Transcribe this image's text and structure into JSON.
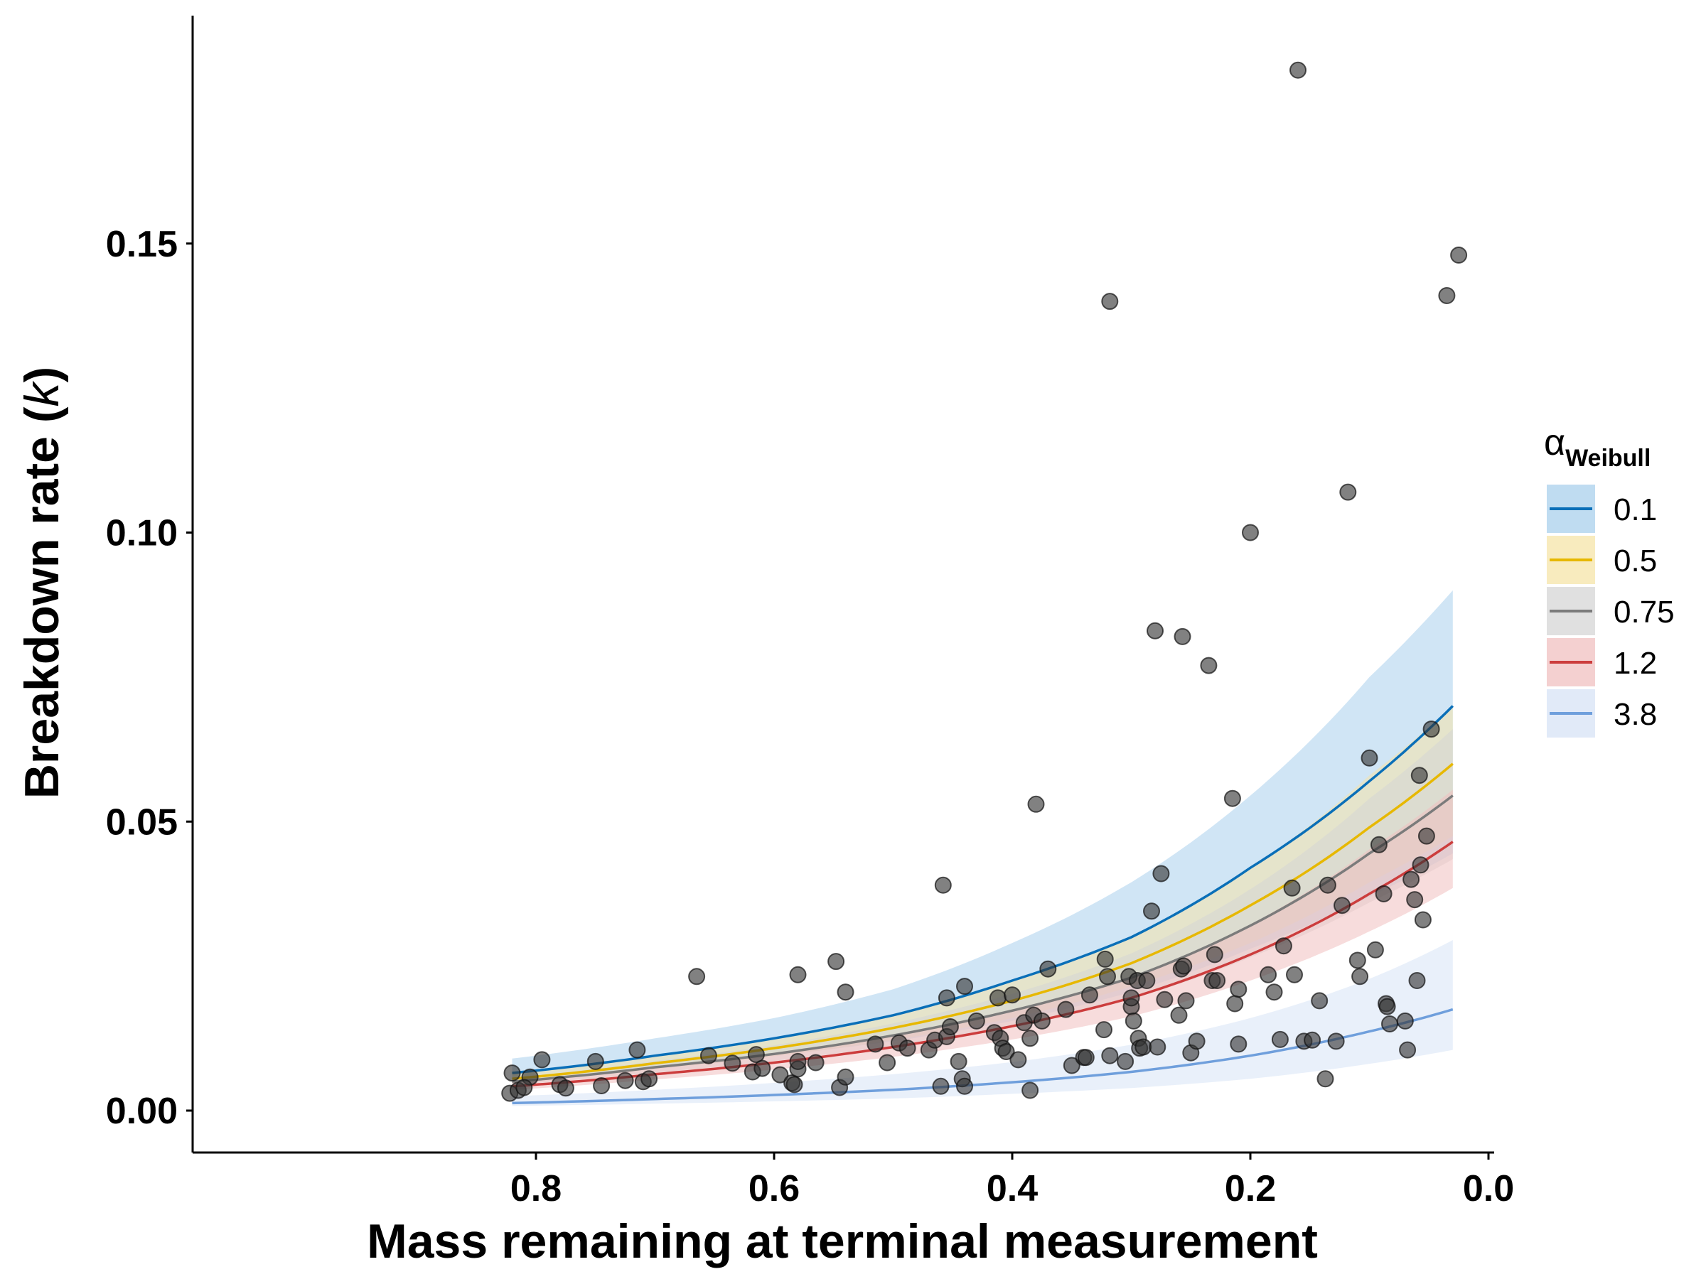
{
  "chart_data": {
    "type": "scatter",
    "xlabel": "Mass remaining at terminal measurement",
    "ylabel_main": "Breakdown rate (",
    "ylabel_italic": "k",
    "ylabel_end": ")",
    "xlim": [
      0.0,
      0.82
    ],
    "x_reversed": true,
    "ylim": [
      0.0,
      0.18
    ],
    "x_ticks": [
      0.8,
      0.6,
      0.4,
      0.2,
      0.0
    ],
    "x_tick_labels": [
      "0.8",
      "0.6",
      "0.4",
      "0.2",
      "0.0"
    ],
    "y_ticks": [
      0.0,
      0.05,
      0.1,
      0.15
    ],
    "y_tick_labels": [
      "0.00",
      "0.05",
      "0.10",
      "0.15"
    ],
    "grid": false,
    "legend": {
      "position": "right",
      "title_symbol": "α",
      "title_subscript": "Weibull",
      "entries": [
        "0.1",
        "0.5",
        "0.75",
        "1.2",
        "3.8"
      ]
    },
    "curves": [
      {
        "name": "0.1",
        "color": "#0a6fb8",
        "band_color": "#a9d0ec",
        "x": [
          0.82,
          0.7,
          0.6,
          0.5,
          0.4,
          0.3,
          0.2,
          0.1,
          0.03
        ],
        "y": [
          0.0065,
          0.0095,
          0.0125,
          0.0165,
          0.0225,
          0.03,
          0.042,
          0.057,
          0.07
        ],
        "lower": [
          0.0055,
          0.0075,
          0.0095,
          0.012,
          0.0155,
          0.0205,
          0.028,
          0.037,
          0.0445
        ],
        "upper": [
          0.009,
          0.0125,
          0.016,
          0.021,
          0.029,
          0.0395,
          0.0545,
          0.075,
          0.09
        ]
      },
      {
        "name": "0.5",
        "color": "#e7b800",
        "band_color": "#f5e4a8",
        "x": [
          0.82,
          0.7,
          0.6,
          0.5,
          0.4,
          0.3,
          0.2,
          0.1,
          0.03
        ],
        "y": [
          0.0055,
          0.0082,
          0.0108,
          0.0143,
          0.019,
          0.0255,
          0.0355,
          0.049,
          0.06
        ],
        "lower": [
          0.0049,
          0.0072,
          0.0094,
          0.0122,
          0.016,
          0.0215,
          0.029,
          0.0395,
          0.0475
        ],
        "upper": [
          0.0065,
          0.0096,
          0.0126,
          0.0167,
          0.0225,
          0.03,
          0.042,
          0.058,
          0.07
        ]
      },
      {
        "name": "0.75",
        "color": "#7b7b7b",
        "band_color": "#d6d6d6",
        "x": [
          0.82,
          0.7,
          0.6,
          0.5,
          0.4,
          0.3,
          0.2,
          0.1,
          0.03
        ],
        "y": [
          0.005,
          0.0075,
          0.0098,
          0.013,
          0.0173,
          0.023,
          0.032,
          0.0445,
          0.0545
        ],
        "lower": [
          0.0045,
          0.0066,
          0.0086,
          0.0112,
          0.0147,
          0.0193,
          0.0265,
          0.036,
          0.0435
        ],
        "upper": [
          0.0057,
          0.0086,
          0.0113,
          0.0151,
          0.0202,
          0.0272,
          0.0383,
          0.054,
          0.066
        ]
      },
      {
        "name": "1.2",
        "color": "#cc3d3d",
        "band_color": "#f0c0c0",
        "x": [
          0.82,
          0.7,
          0.6,
          0.5,
          0.4,
          0.3,
          0.2,
          0.1,
          0.03
        ],
        "y": [
          0.0042,
          0.0063,
          0.0083,
          0.011,
          0.0146,
          0.0195,
          0.027,
          0.0375,
          0.0465
        ],
        "lower": [
          0.0036,
          0.0054,
          0.0071,
          0.0093,
          0.0123,
          0.0163,
          0.0225,
          0.031,
          0.0385
        ],
        "upper": [
          0.005,
          0.0073,
          0.0096,
          0.0128,
          0.0172,
          0.023,
          0.0322,
          0.0452,
          0.0555
        ]
      },
      {
        "name": "3.8",
        "color": "#6f9fdc",
        "band_color": "#d7e3f5",
        "x": [
          0.82,
          0.7,
          0.6,
          0.5,
          0.4,
          0.3,
          0.2,
          0.1,
          0.03
        ],
        "y": [
          0.0013,
          0.002,
          0.0027,
          0.0036,
          0.0049,
          0.0067,
          0.0095,
          0.0137,
          0.0175
        ],
        "lower": [
          0.0008,
          0.0012,
          0.0016,
          0.0021,
          0.0029,
          0.0039,
          0.0055,
          0.0081,
          0.0105
        ],
        "upper": [
          0.0025,
          0.0036,
          0.0048,
          0.0063,
          0.0084,
          0.0114,
          0.016,
          0.0228,
          0.0295
        ]
      }
    ],
    "points": [
      [
        0.82,
        0.0065
      ],
      [
        0.822,
        0.003
      ],
      [
        0.815,
        0.0035
      ],
      [
        0.805,
        0.0058
      ],
      [
        0.81,
        0.004
      ],
      [
        0.795,
        0.0088
      ],
      [
        0.78,
        0.0045
      ],
      [
        0.775,
        0.0039
      ],
      [
        0.75,
        0.0085
      ],
      [
        0.745,
        0.0043
      ],
      [
        0.725,
        0.0052
      ],
      [
        0.715,
        0.0105
      ],
      [
        0.71,
        0.005
      ],
      [
        0.705,
        0.0055
      ],
      [
        0.665,
        0.0232
      ],
      [
        0.655,
        0.0095
      ],
      [
        0.635,
        0.0082
      ],
      [
        0.618,
        0.0067
      ],
      [
        0.615,
        0.0097
      ],
      [
        0.61,
        0.0073
      ],
      [
        0.595,
        0.0062
      ],
      [
        0.585,
        0.0048
      ],
      [
        0.583,
        0.0045
      ],
      [
        0.58,
        0.0235
      ],
      [
        0.58,
        0.0072
      ],
      [
        0.58,
        0.0085
      ],
      [
        0.565,
        0.0083
      ],
      [
        0.548,
        0.0258
      ],
      [
        0.545,
        0.004
      ],
      [
        0.54,
        0.0058
      ],
      [
        0.54,
        0.0205
      ],
      [
        0.515,
        0.0115
      ],
      [
        0.505,
        0.0083
      ],
      [
        0.495,
        0.0117
      ],
      [
        0.488,
        0.0108
      ],
      [
        0.47,
        0.0105
      ],
      [
        0.465,
        0.0122
      ],
      [
        0.46,
        0.0042
      ],
      [
        0.458,
        0.039
      ],
      [
        0.455,
        0.0195
      ],
      [
        0.455,
        0.0128
      ],
      [
        0.452,
        0.0145
      ],
      [
        0.445,
        0.0085
      ],
      [
        0.442,
        0.0055
      ],
      [
        0.44,
        0.0042
      ],
      [
        0.44,
        0.0215
      ],
      [
        0.43,
        0.0155
      ],
      [
        0.415,
        0.0135
      ],
      [
        0.412,
        0.0195
      ],
      [
        0.41,
        0.0125
      ],
      [
        0.408,
        0.0108
      ],
      [
        0.405,
        0.0102
      ],
      [
        0.4,
        0.02
      ],
      [
        0.395,
        0.0088
      ],
      [
        0.39,
        0.0152
      ],
      [
        0.385,
        0.0125
      ],
      [
        0.385,
        0.0035
      ],
      [
        0.382,
        0.0165
      ],
      [
        0.38,
        0.053
      ],
      [
        0.375,
        0.0155
      ],
      [
        0.37,
        0.0245
      ],
      [
        0.355,
        0.0175
      ],
      [
        0.35,
        0.0078
      ],
      [
        0.34,
        0.0092
      ],
      [
        0.338,
        0.0092
      ],
      [
        0.335,
        0.02
      ],
      [
        0.323,
        0.014
      ],
      [
        0.322,
        0.0262
      ],
      [
        0.32,
        0.0232
      ],
      [
        0.318,
        0.0095
      ],
      [
        0.318,
        0.14
      ],
      [
        0.305,
        0.0085
      ],
      [
        0.302,
        0.0232
      ],
      [
        0.3,
        0.018
      ],
      [
        0.3,
        0.0195
      ],
      [
        0.298,
        0.0155
      ],
      [
        0.295,
        0.0225
      ],
      [
        0.294,
        0.0125
      ],
      [
        0.293,
        0.0108
      ],
      [
        0.29,
        0.011
      ],
      [
        0.287,
        0.0225
      ],
      [
        0.283,
        0.0345
      ],
      [
        0.28,
        0.083
      ],
      [
        0.278,
        0.011
      ],
      [
        0.275,
        0.041
      ],
      [
        0.272,
        0.0192
      ],
      [
        0.26,
        0.0165
      ],
      [
        0.258,
        0.0245
      ],
      [
        0.257,
        0.082
      ],
      [
        0.256,
        0.025
      ],
      [
        0.254,
        0.019
      ],
      [
        0.25,
        0.01
      ],
      [
        0.245,
        0.012
      ],
      [
        0.235,
        0.077
      ],
      [
        0.232,
        0.0225
      ],
      [
        0.23,
        0.027
      ],
      [
        0.228,
        0.0225
      ],
      [
        0.215,
        0.054
      ],
      [
        0.213,
        0.0185
      ],
      [
        0.21,
        0.0115
      ],
      [
        0.21,
        0.021
      ],
      [
        0.2,
        0.1
      ],
      [
        0.185,
        0.0235
      ],
      [
        0.18,
        0.0205
      ],
      [
        0.175,
        0.0123
      ],
      [
        0.172,
        0.0285
      ],
      [
        0.165,
        0.0385
      ],
      [
        0.163,
        0.0235
      ],
      [
        0.16,
        0.18
      ],
      [
        0.155,
        0.012
      ],
      [
        0.148,
        0.0122
      ],
      [
        0.142,
        0.019
      ],
      [
        0.137,
        0.0055
      ],
      [
        0.135,
        0.039
      ],
      [
        0.128,
        0.012
      ],
      [
        0.123,
        0.0355
      ],
      [
        0.118,
        0.107
      ],
      [
        0.11,
        0.026
      ],
      [
        0.108,
        0.0232
      ],
      [
        0.1,
        0.061
      ],
      [
        0.095,
        0.0278
      ],
      [
        0.092,
        0.046
      ],
      [
        0.088,
        0.0375
      ],
      [
        0.086,
        0.0185
      ],
      [
        0.085,
        0.018
      ],
      [
        0.083,
        0.015
      ],
      [
        0.07,
        0.0155
      ],
      [
        0.068,
        0.0105
      ],
      [
        0.065,
        0.04
      ],
      [
        0.062,
        0.0365
      ],
      [
        0.06,
        0.0225
      ],
      [
        0.058,
        0.058
      ],
      [
        0.055,
        0.033
      ],
      [
        0.052,
        0.0475
      ],
      [
        0.048,
        0.066
      ],
      [
        0.035,
        0.141
      ],
      [
        0.025,
        0.148
      ],
      [
        0.057,
        0.0425
      ]
    ]
  }
}
